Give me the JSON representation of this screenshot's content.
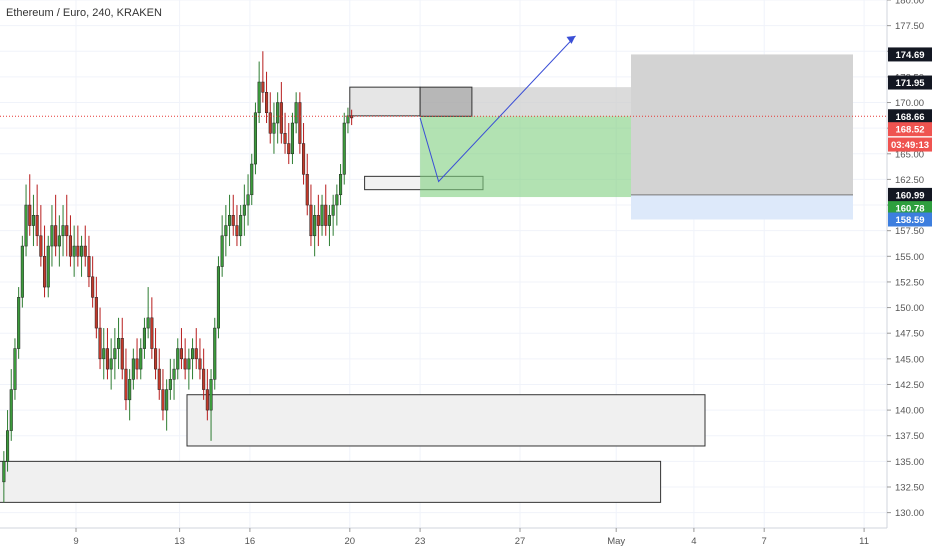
{
  "chart_data": {
    "type": "candlestick",
    "title": "Ethereum / Euro, 240, KRAKEN",
    "ylim": [
      128.5,
      180
    ],
    "y_ticks": [
      "180.00",
      "177.50",
      "175.00",
      "172.50",
      "170.00",
      "167.50",
      "165.00",
      "162.50",
      "160.00",
      "157.50",
      "155.00",
      "152.50",
      "150.00",
      "147.50",
      "145.00",
      "142.50",
      "140.00",
      "137.50",
      "135.00",
      "132.50",
      "130.00"
    ],
    "x_ticks": [
      {
        "label": "9",
        "bar": 0
      },
      {
        "label": "13",
        "bar": 0
      },
      {
        "label": "16",
        "bar": 0
      },
      {
        "label": "20",
        "bar": 0
      },
      {
        "label": "23",
        "bar": 0
      },
      {
        "label": "27",
        "bar": 0
      },
      {
        "label": "May",
        "bar": 0
      },
      {
        "label": "4",
        "bar": 0
      },
      {
        "label": "7",
        "bar": 0
      },
      {
        "label": "11",
        "bar": 0
      }
    ],
    "x_tick_bars": [
      20,
      48,
      67,
      94,
      113,
      140,
      166,
      187,
      206,
      233
    ],
    "bars_per_day": 6,
    "colors": {
      "up": "#26a69a",
      "down": "#ef5350",
      "body_up": "#3c9a3c",
      "body_down": "#c2392b",
      "wick": "#555555",
      "grid": "#f0f3fa"
    },
    "candles": [
      [
        133,
        136,
        131,
        135
      ],
      [
        135,
        140,
        134,
        138
      ],
      [
        138,
        144,
        137,
        142
      ],
      [
        142,
        147,
        141,
        146
      ],
      [
        146,
        152,
        145,
        151
      ],
      [
        151,
        157,
        150,
        156
      ],
      [
        156,
        162,
        155,
        160
      ],
      [
        160,
        163,
        157,
        158
      ],
      [
        158,
        161,
        156,
        159
      ],
      [
        159,
        162,
        156,
        157
      ],
      [
        157,
        160,
        154,
        155
      ],
      [
        155,
        158,
        151,
        152
      ],
      [
        152,
        157,
        151,
        156
      ],
      [
        156,
        160,
        154,
        158
      ],
      [
        158,
        161,
        155,
        156
      ],
      [
        156,
        159,
        154,
        157
      ],
      [
        157,
        160,
        155,
        158
      ],
      [
        158,
        161,
        155,
        157
      ],
      [
        157,
        159,
        154,
        155
      ],
      [
        155,
        158,
        153,
        156
      ],
      [
        156,
        158,
        154,
        155
      ],
      [
        155,
        157,
        153,
        156
      ],
      [
        156,
        158,
        154,
        155
      ],
      [
        155,
        157,
        152,
        153
      ],
      [
        153,
        155,
        150,
        151
      ],
      [
        151,
        153,
        147,
        148
      ],
      [
        148,
        150,
        144,
        145
      ],
      [
        145,
        148,
        143,
        146
      ],
      [
        146,
        148,
        143,
        144
      ],
      [
        144,
        147,
        142,
        145
      ],
      [
        145,
        148,
        143,
        146
      ],
      [
        146,
        149,
        144,
        147
      ],
      [
        147,
        149,
        143,
        144
      ],
      [
        144,
        146,
        140,
        141
      ],
      [
        141,
        144,
        139,
        143
      ],
      [
        143,
        146,
        142,
        145
      ],
      [
        145,
        147,
        143,
        144
      ],
      [
        144,
        147,
        143,
        146
      ],
      [
        146,
        149,
        145,
        148
      ],
      [
        148,
        152,
        147,
        149
      ],
      [
        149,
        151,
        145,
        146
      ],
      [
        146,
        148,
        143,
        144
      ],
      [
        144,
        146,
        141,
        142
      ],
      [
        142,
        144,
        139,
        140
      ],
      [
        140,
        143,
        138,
        142
      ],
      [
        142,
        145,
        141,
        143
      ],
      [
        143,
        145,
        141,
        144
      ],
      [
        144,
        147,
        143,
        146
      ],
      [
        146,
        148,
        144,
        145
      ],
      [
        145,
        147,
        143,
        144
      ],
      [
        144,
        146,
        142,
        145
      ],
      [
        145,
        147,
        143,
        146
      ],
      [
        146,
        148,
        144,
        145
      ],
      [
        145,
        147,
        143,
        144
      ],
      [
        144,
        146,
        141,
        142
      ],
      [
        142,
        144,
        139,
        140
      ],
      [
        140,
        144,
        137,
        143
      ],
      [
        143,
        149,
        142,
        148
      ],
      [
        148,
        155,
        147,
        154
      ],
      [
        154,
        159,
        153,
        157
      ],
      [
        157,
        160,
        155,
        158
      ],
      [
        158,
        161,
        156,
        159
      ],
      [
        159,
        161,
        157,
        158
      ],
      [
        158,
        160,
        156,
        157
      ],
      [
        157,
        160,
        156,
        159
      ],
      [
        159,
        162,
        157,
        160
      ],
      [
        160,
        163,
        158,
        161
      ],
      [
        161,
        165,
        160,
        164
      ],
      [
        164,
        170,
        163,
        169
      ],
      [
        169,
        174,
        168,
        172
      ],
      [
        172,
        175,
        170,
        171
      ],
      [
        171,
        173,
        168,
        169
      ],
      [
        169,
        171,
        166,
        167
      ],
      [
        167,
        170,
        165,
        168
      ],
      [
        168,
        171,
        166,
        170
      ],
      [
        170,
        172,
        166,
        167
      ],
      [
        167,
        169,
        165,
        166
      ],
      [
        166,
        168,
        164,
        165
      ],
      [
        165,
        169,
        164,
        168
      ],
      [
        168,
        171,
        167,
        170
      ],
      [
        170,
        171,
        165,
        166
      ],
      [
        166,
        168,
        162,
        163
      ],
      [
        163,
        165,
        159,
        160
      ],
      [
        160,
        162,
        156,
        157
      ],
      [
        157,
        160,
        155,
        159
      ],
      [
        159,
        161,
        156,
        158
      ],
      [
        158,
        161,
        157,
        160
      ],
      [
        160,
        162,
        157,
        158
      ],
      [
        158,
        160,
        156,
        159
      ],
      [
        159,
        161,
        157,
        160
      ],
      [
        160,
        162,
        158,
        161
      ],
      [
        161,
        164,
        160,
        163
      ],
      [
        163,
        169,
        162,
        168
      ],
      [
        168,
        169.5,
        167,
        168.7
      ],
      [
        168.7,
        169.3,
        167.8,
        168.5
      ]
    ],
    "zones": [
      {
        "label": "resistance-box",
        "bar_start": 94,
        "bar_end": 113,
        "y_low": 168.7,
        "y_high": 171.5,
        "fill": "#e6e6e6",
        "stroke": "#333333"
      },
      {
        "label": "support-box-small",
        "bar_start": 98,
        "bar_end": 130,
        "y_low": 161.5,
        "y_high": 162.8,
        "fill": "#f2f2f2",
        "stroke": "#333333"
      },
      {
        "label": "demand-zone-1",
        "bar_start": 50,
        "bar_end": 190,
        "y_low": 136.5,
        "y_high": 141.5,
        "fill": "#f0f0f0",
        "stroke": "#333333"
      },
      {
        "label": "demand-zone-2",
        "bar_start": -2,
        "bar_end": 178,
        "y_low": 131,
        "y_high": 135,
        "fill": "#f0f0f0",
        "stroke": "#333333"
      }
    ],
    "position": {
      "bar_start": 113,
      "bar_end": 170,
      "entry": 168.66,
      "target": 171.5,
      "stop": 160.78,
      "profit_color": "#b7b7b7",
      "loss_color": "#7fcf7f"
    },
    "right_box": {
      "bar_start": 170,
      "bar_end": 230,
      "y_low": 158.59,
      "y_high": 174.69,
      "mid": 160.99
    },
    "projection": [
      {
        "bar": 113,
        "y": 168.5
      },
      {
        "bar": 118,
        "y": 162.3
      },
      {
        "bar": 155,
        "y": 176.5
      }
    ],
    "price_labels": [
      {
        "text": "174.69",
        "y": 174.69,
        "bg": "#131722",
        "fg": "#ffffff"
      },
      {
        "text": "171.95",
        "y": 171.95,
        "bg": "#131722",
        "fg": "#ffffff"
      },
      {
        "text": "168.66",
        "y": 168.66,
        "bg": "#131722",
        "fg": "#ffffff"
      },
      {
        "text": "168.52",
        "y": 167.4,
        "bg": "#ef5350",
        "fg": "#ffffff"
      },
      {
        "text": "03:49:13",
        "y": 165.9,
        "bg": "#ef5350",
        "fg": "#ffffff"
      },
      {
        "text": "160.99",
        "y": 160.99,
        "bg": "#131722",
        "fg": "#ffffff"
      },
      {
        "text": "160.78",
        "y": 159.7,
        "bg": "#2e9f3e",
        "fg": "#ffffff"
      },
      {
        "text": "158.59",
        "y": 158.59,
        "bg": "#3d7ede",
        "fg": "#ffffff"
      }
    ],
    "current_price_line": 168.66
  }
}
